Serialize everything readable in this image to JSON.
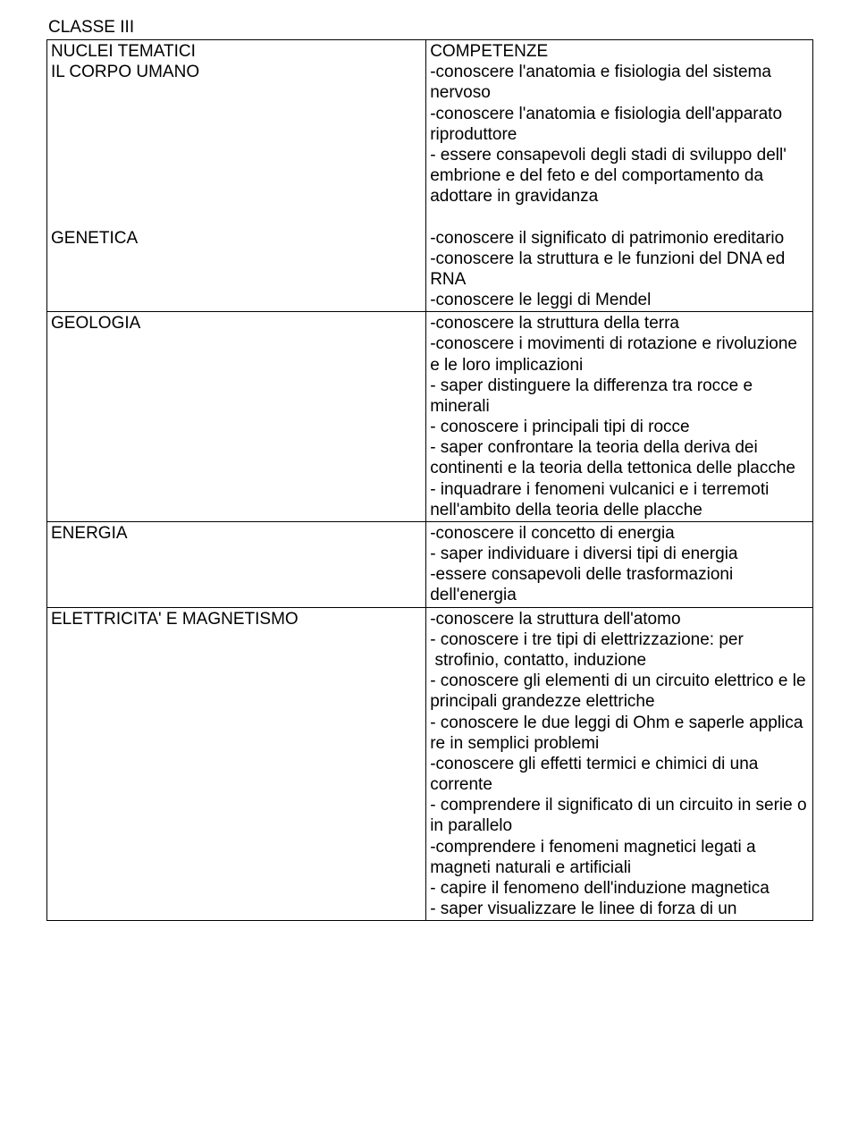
{
  "title": "CLASSE III",
  "table": {
    "rows": [
      {
        "left": "NUCLEI TEMATICI\nIL CORPO UMANO\n\n\n\n\n\n\n\nGENETICA",
        "right": "COMPETENZE\n-conoscere l'anatomia e fisiologia del sistema nervoso\n-conoscere l'anatomia e fisiologia dell'apparato riproduttore\n- essere consapevoli degli stadi di sviluppo dell' embrione e del feto e del comportamento da  adottare in gravidanza\n\n-conoscere il significato di patrimonio ereditario\n-conoscere la struttura e le funzioni del DNA ed RNA\n-conoscere le leggi di Mendel"
      },
      {
        "left": "GEOLOGIA",
        "right": "-conoscere la struttura della terra\n-conoscere i movimenti di rotazione e rivoluzione e le loro implicazioni\n- saper distinguere la differenza tra rocce e minerali\n- conoscere i principali tipi di rocce\n- saper confrontare la teoria della deriva dei continenti e la teoria della tettonica delle placche\n- inquadrare i fenomeni vulcanici e i terremoti nell'ambito della teoria delle placche"
      },
      {
        "left": "ENERGIA",
        "right": "-conoscere il concetto di energia\n- saper individuare i diversi tipi di energia\n-essere consapevoli delle trasformazioni dell'energia"
      },
      {
        "left": "ELETTRICITA' E MAGNETISMO",
        "right": "-conoscere la struttura dell'atomo\n- conoscere i tre tipi di elettrizzazione: per\n strofinio, contatto, induzione\n- conoscere gli elementi di un circuito elettrico e le principali grandezze elettriche\n- conoscere le due leggi di Ohm e saperle applica re in semplici problemi\n-conoscere gli effetti termici e chimici di una corrente\n- comprendere il significato di un circuito in serie o in parallelo\n-comprendere i fenomeni magnetici legati a magneti naturali e artificiali\n- capire il fenomeno dell'induzione magnetica\n- saper visualizzare le linee di forza di un"
      }
    ]
  }
}
